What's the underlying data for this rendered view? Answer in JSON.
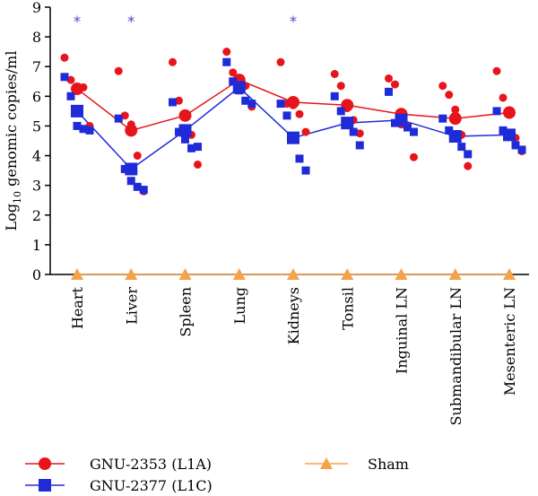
{
  "chart_data": {
    "type": "scatter",
    "title": "",
    "xlabel": "",
    "ylabel_base": "Log",
    "ylabel_sub": "10",
    "ylabel_rest": " genomic copies/ml",
    "ylim": [
      0,
      9
    ],
    "yticks": [
      "0",
      "1",
      "2",
      "3",
      "4",
      "5",
      "6",
      "7",
      "8",
      "9"
    ],
    "categories": [
      "Heart",
      "Liver",
      "Spleen",
      "Lung",
      "Kidneys",
      "Tonsil",
      "Inguinal LN",
      "Submandibular LN",
      "Mesenteric LN"
    ],
    "significance_marker": "*",
    "significant_categories": [
      "Heart",
      "Liver",
      "Kidneys"
    ],
    "legend_position": "bottom",
    "series": [
      {
        "name": "GNU-2353 (L1A)",
        "marker": "circle",
        "color": "#e8141c",
        "means": [
          6.25,
          4.85,
          5.35,
          6.55,
          5.8,
          5.7,
          5.4,
          5.25,
          5.45
        ],
        "points": [
          [
            7.3,
            6.55,
            6.3,
            6.3,
            5.0
          ],
          [
            6.85,
            5.35,
            5.05,
            4.0,
            2.8
          ],
          [
            7.15,
            5.85,
            5.4,
            4.7,
            3.7
          ],
          [
            7.5,
            6.8,
            6.45,
            6.35,
            5.65
          ],
          [
            7.15,
            5.75,
            5.7,
            5.4,
            4.8
          ],
          [
            6.75,
            6.35,
            5.6,
            5.2,
            4.75
          ],
          [
            6.6,
            6.4,
            5.05,
            5.0,
            3.95
          ],
          [
            6.35,
            6.05,
            5.55,
            4.7,
            3.65
          ],
          [
            6.85,
            5.95,
            5.5,
            4.6,
            4.15
          ]
        ]
      },
      {
        "name": "GNU-2377 (L1C)",
        "marker": "square",
        "color": "#1f2bd8",
        "means": [
          5.5,
          3.55,
          4.85,
          6.3,
          4.6,
          5.1,
          5.2,
          4.65,
          4.7
        ],
        "points": [
          [
            6.65,
            6.0,
            5.0,
            4.9,
            4.85
          ],
          [
            5.25,
            3.55,
            3.15,
            2.95,
            2.85
          ],
          [
            5.8,
            4.8,
            4.55,
            4.25,
            4.3
          ],
          [
            7.15,
            6.5,
            6.2,
            5.85,
            5.75
          ],
          [
            5.75,
            5.35,
            4.6,
            3.9,
            3.5
          ],
          [
            6.0,
            5.5,
            5.15,
            4.8,
            4.35
          ],
          [
            6.15,
            5.1,
            5.2,
            4.95,
            4.8
          ],
          [
            5.25,
            4.85,
            4.7,
            4.3,
            4.05
          ],
          [
            5.5,
            4.85,
            4.75,
            4.35,
            4.2
          ]
        ]
      },
      {
        "name": "Sham",
        "marker": "triangle",
        "color": "#f5a24b",
        "means": [
          0,
          0,
          0,
          0,
          0,
          0,
          0,
          0,
          0
        ],
        "points": []
      }
    ]
  }
}
